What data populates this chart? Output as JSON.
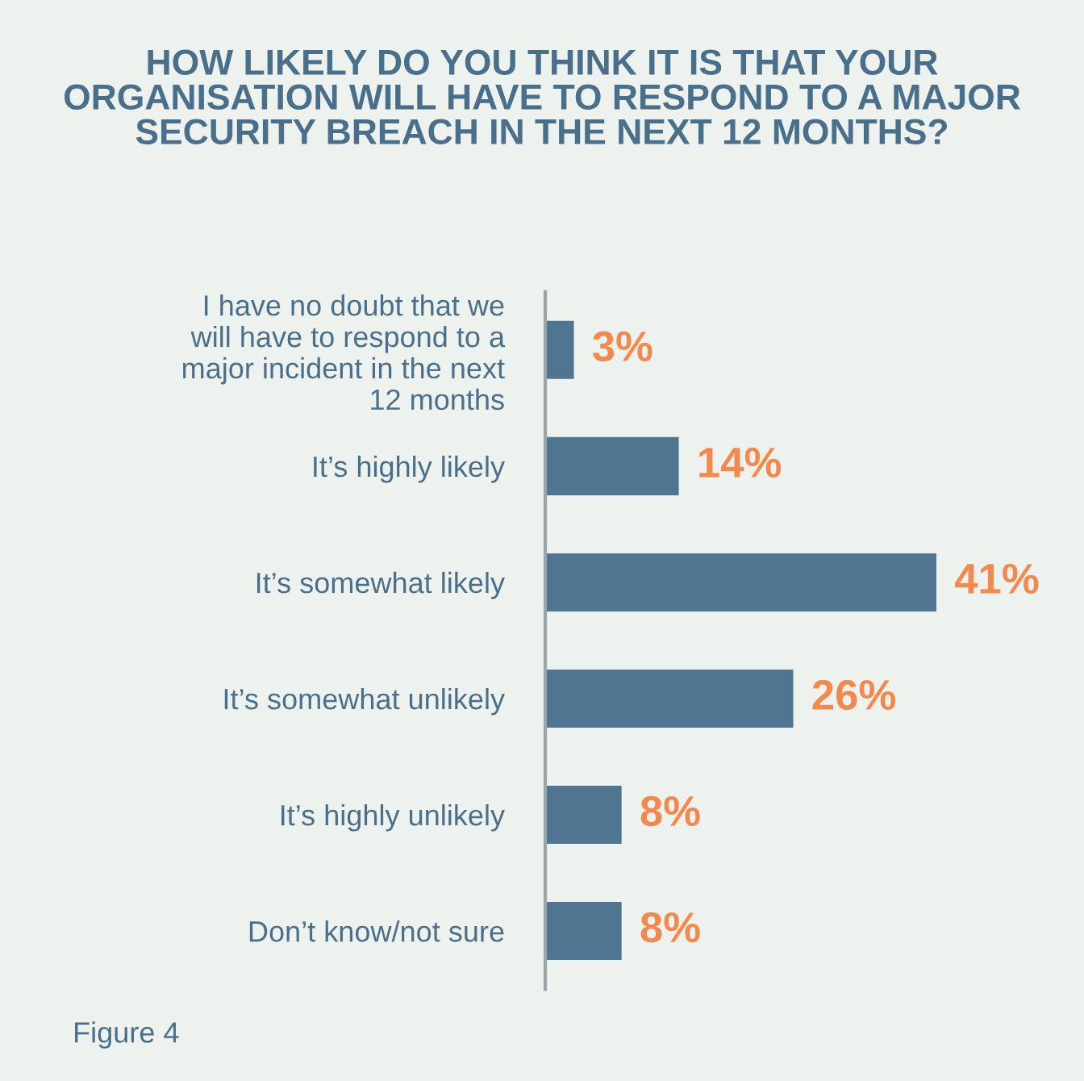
{
  "chart_data": {
    "type": "bar",
    "orientation": "horizontal",
    "title": "HOW LIKELY DO YOU THINK IT IS THAT YOUR\nORGANISATION WILL HAVE TO RESPOND TO A MAJOR\nSECURITY BREACH IN THE NEXT 12 MONTHS?",
    "categories": [
      "I have no doubt that we\nwill have to respond to a\nmajor incident in the next\n12 months",
      "It’s highly likely",
      "It’s somewhat likely",
      "It’s somewhat unlikely",
      "It’s highly unlikely",
      "Don’t know/not sure"
    ],
    "values": [
      3,
      14,
      41,
      26,
      8,
      8
    ],
    "value_labels": [
      "3%",
      "14%",
      "41%",
      "26%",
      "8%",
      "8%"
    ],
    "color": "#4f7590",
    "data_labels": false,
    "annotations": [
      "Figure 4"
    ]
  }
}
